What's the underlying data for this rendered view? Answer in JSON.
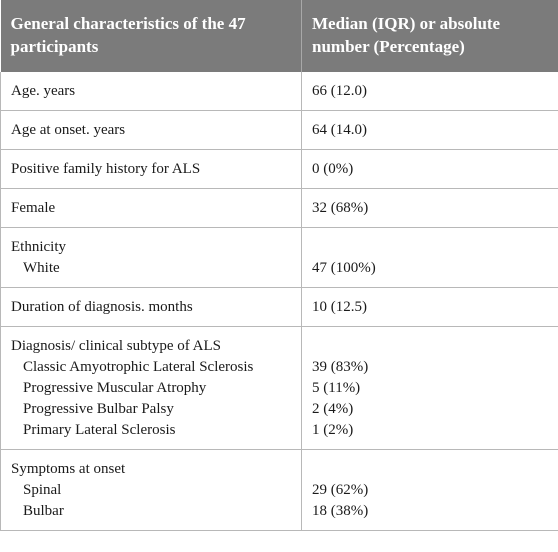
{
  "header": {
    "col1": "General characteristics of the 47 participants",
    "col2": "Median (IQR) or absolute number (Percentage)"
  },
  "rows": {
    "age": {
      "label": "Age. years",
      "value": "66 (12.0)"
    },
    "age_onset": {
      "label": "Age at onset. years",
      "value": "64 (14.0)"
    },
    "family_history": {
      "label": "Positive family history for ALS",
      "value": "0 (0%)"
    },
    "female": {
      "label": "Female",
      "value": "32 (68%)"
    },
    "ethnicity": {
      "label": "Ethnicity",
      "items": [
        {
          "label": "White",
          "value": "47 (100%)"
        }
      ]
    },
    "duration": {
      "label": "Duration of diagnosis. months",
      "value": "10 (12.5)"
    },
    "diagnosis": {
      "label": "Diagnosis/ clinical subtype of ALS",
      "items": [
        {
          "label": "Classic Amyotrophic Lateral Sclerosis",
          "value": "39 (83%)"
        },
        {
          "label": "Progressive Muscular Atrophy",
          "value": "5 (11%)"
        },
        {
          "label": "Progressive Bulbar Palsy",
          "value": "2 (4%)"
        },
        {
          "label": "Primary Lateral Sclerosis",
          "value": "1 (2%)"
        }
      ]
    },
    "symptoms": {
      "label": "Symptoms at onset",
      "items": [
        {
          "label": "Spinal",
          "value": "29 (62%)"
        },
        {
          "label": "Bulbar",
          "value": "18 (38%)"
        }
      ]
    }
  }
}
